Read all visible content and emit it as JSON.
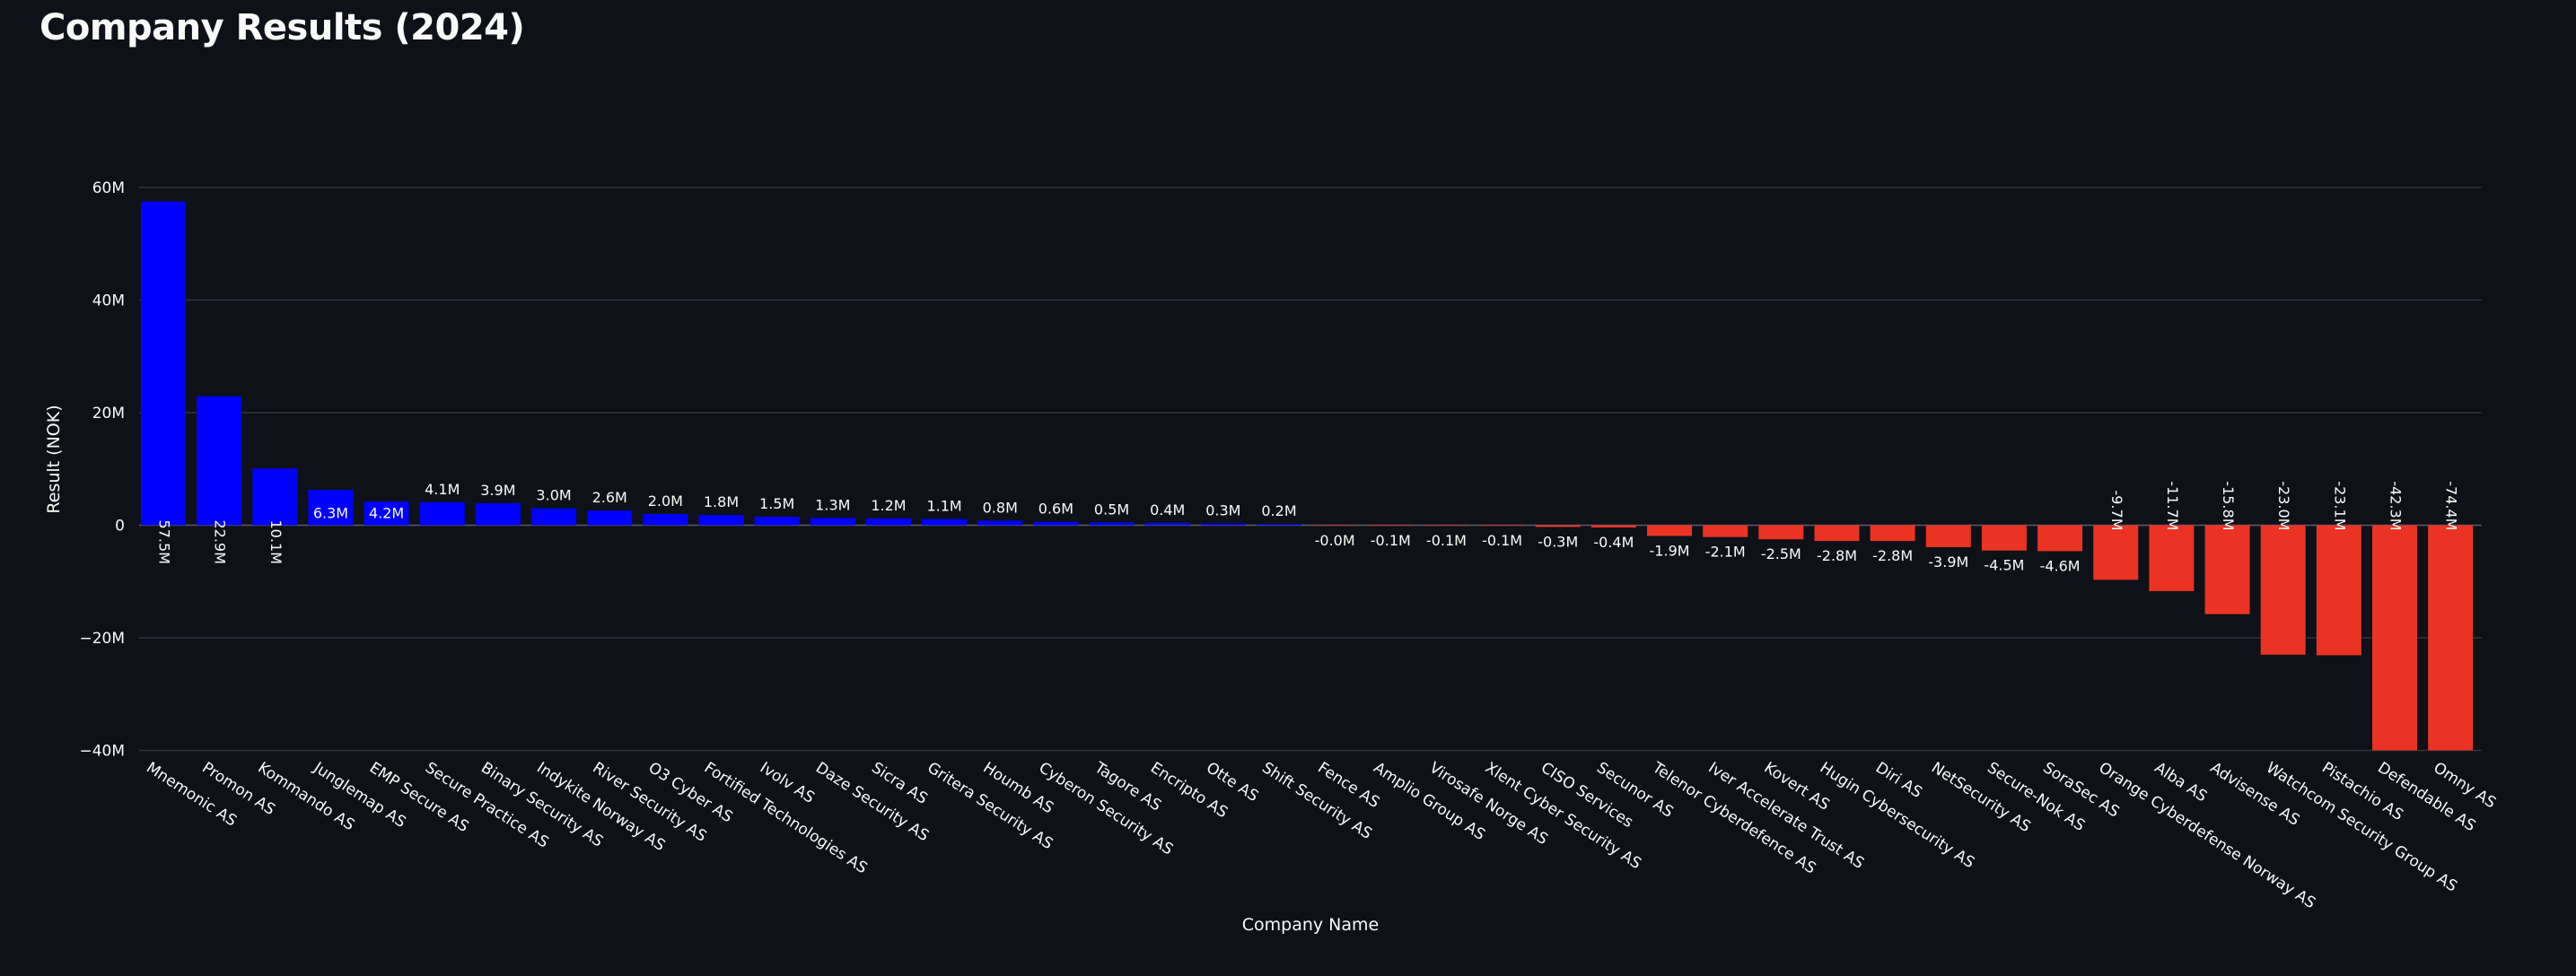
{
  "page_title": "Company Results (2024)",
  "colors": {
    "background": "#0e1117",
    "positive": "#0000ff",
    "negative": "#ea3323",
    "text": "#fafafa",
    "grid": "#31333f"
  },
  "chart_data": {
    "type": "bar",
    "title": "Company Results (2024)",
    "xlabel": "Company Name",
    "ylabel": "Result (NOK)",
    "ylim": [
      -40,
      60
    ],
    "yticks": [
      -40,
      -20,
      0,
      20,
      40,
      60
    ],
    "ytick_labels": [
      "−40M",
      "−20M",
      "0",
      "20M",
      "40M",
      "60M"
    ],
    "grid": true,
    "unit": "M NOK",
    "categories": [
      "Mnemonic AS",
      "Promon AS",
      "Kommando AS",
      "Junglemap AS",
      "EMP Secure AS",
      "Secure Practice AS",
      "Binary Security AS",
      "Indykite Norway AS",
      "River Security AS",
      "O3 Cyber AS",
      "Fortified Technologies AS",
      "Ivolv AS",
      "Daze Security AS",
      "Sicra AS",
      "Gritera Security AS",
      "Houmb AS",
      "Cyberon Security AS",
      "Tagore AS",
      "Encripto AS",
      "Otte AS",
      "Shift Security AS",
      "Fence AS",
      "Amplio Group AS",
      "Virosafe Norge AS",
      "Xlent Cyber Security AS",
      "CISO Services",
      "Secunor AS",
      "Telenor Cyberdefence AS",
      "Iver Accelerate Trust AS",
      "Kovert AS",
      "Hugin Cybersecurity AS",
      "Diri AS",
      "NetSecurity AS",
      "Secure-Nok AS",
      "SoraSec AS",
      "Orange Cyberdefense Norway AS",
      "Alba AS",
      "Advisense AS",
      "Watchcom Security Group AS",
      "Pistachio AS",
      "Defendable AS",
      "Omny AS"
    ],
    "values": [
      57.5,
      22.9,
      10.1,
      6.3,
      4.2,
      4.1,
      3.9,
      3.0,
      2.6,
      2.0,
      1.8,
      1.5,
      1.3,
      1.2,
      1.1,
      0.8,
      0.6,
      0.5,
      0.4,
      0.3,
      0.2,
      -0.04,
      -0.1,
      -0.1,
      -0.1,
      -0.3,
      -0.4,
      -1.9,
      -2.1,
      -2.5,
      -2.8,
      -2.8,
      -3.9,
      -4.5,
      -4.6,
      -9.7,
      -11.7,
      -15.8,
      -23.0,
      -23.1,
      -42.3,
      -74.4
    ],
    "data_labels": [
      "57.5M",
      "22.9M",
      "10.1M",
      "6.3M",
      "4.2M",
      "4.1M",
      "3.9M",
      "3.0M",
      "2.6M",
      "2.0M",
      "1.8M",
      "1.5M",
      "1.3M",
      "1.2M",
      "1.1M",
      "0.8M",
      "0.6M",
      "0.5M",
      "0.4M",
      "0.3M",
      "0.2M",
      "-0.0M",
      "-0.1M",
      "-0.1M",
      "-0.1M",
      "-0.3M",
      "-0.4M",
      "-1.9M",
      "-2.1M",
      "-2.5M",
      "-2.8M",
      "-2.8M",
      "-3.9M",
      "-4.5M",
      "-4.6M",
      "-9.7M",
      "-11.7M",
      "-15.8M",
      "-23.0M",
      "-23.1M",
      "-42.3M",
      "-74.4M"
    ]
  }
}
